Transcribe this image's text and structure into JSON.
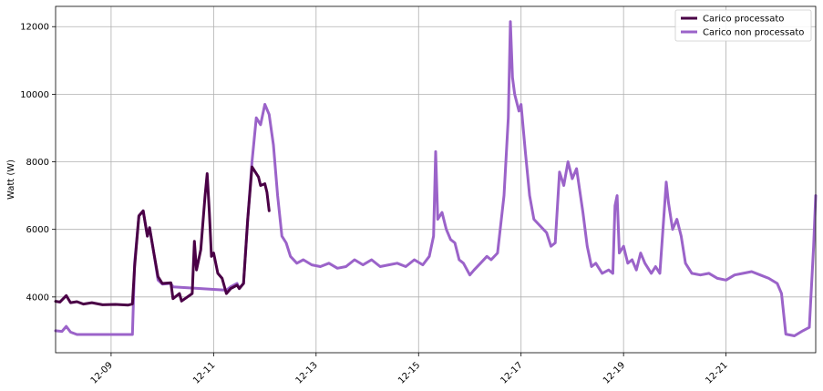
{
  "chart_data": {
    "type": "line",
    "title": "",
    "xlabel": "",
    "ylabel": "Watt (W)",
    "xlim": [
      "2021-12-07T22:00",
      "2021-12-22T18:00"
    ],
    "ylim": [
      2350,
      12600
    ],
    "x_ticks": [
      "12-09",
      "12-11",
      "12-13",
      "12-15",
      "12-17",
      "12-19",
      "12-21"
    ],
    "y_ticks": [
      "4000",
      "6000",
      "8000",
      "10000",
      "12000"
    ],
    "grid": true,
    "legend": "top-right",
    "colors": {
      "processed": "#4a0046",
      "unprocessed": "#9b63c9"
    },
    "series": [
      {
        "name": "Carico processato",
        "points": [
          [
            "2021-12-07T22:00",
            3870
          ],
          [
            "2021-12-08T00:00",
            3850
          ],
          [
            "2021-12-08T03:00",
            4040
          ],
          [
            "2021-12-08T05:00",
            3830
          ],
          [
            "2021-12-08T08:00",
            3860
          ],
          [
            "2021-12-08T11:00",
            3790
          ],
          [
            "2021-12-08T15:00",
            3830
          ],
          [
            "2021-12-08T20:00",
            3770
          ],
          [
            "2021-12-09T02:00",
            3780
          ],
          [
            "2021-12-09T08:00",
            3760
          ],
          [
            "2021-12-09T10:00",
            3790
          ],
          [
            "2021-12-09T11:00",
            4900
          ],
          [
            "2021-12-09T13:00",
            6400
          ],
          [
            "2021-12-09T15:00",
            6550
          ],
          [
            "2021-12-09T17:00",
            5800
          ],
          [
            "2021-12-09T18:00",
            6050
          ],
          [
            "2021-12-09T20:00",
            5300
          ],
          [
            "2021-12-09T22:00",
            4600
          ],
          [
            "2021-12-10T00:00",
            4400
          ],
          [
            "2021-12-10T04:00",
            4420
          ],
          [
            "2021-12-10T05:00",
            3950
          ],
          [
            "2021-12-10T08:00",
            4100
          ],
          [
            "2021-12-10T09:00",
            3880
          ],
          [
            "2021-12-10T14:00",
            4100
          ],
          [
            "2021-12-10T15:00",
            5650
          ],
          [
            "2021-12-10T16:00",
            4800
          ],
          [
            "2021-12-10T18:00",
            5400
          ],
          [
            "2021-12-10T20:00",
            7000
          ],
          [
            "2021-12-10T21:00",
            7650
          ],
          [
            "2021-12-10T22:00",
            6500
          ],
          [
            "2021-12-10T23:00",
            5200
          ],
          [
            "2021-12-11T00:00",
            5300
          ],
          [
            "2021-12-11T02:00",
            4700
          ],
          [
            "2021-12-11T04:00",
            4550
          ],
          [
            "2021-12-11T06:00",
            4100
          ],
          [
            "2021-12-11T08:00",
            4250
          ],
          [
            "2021-12-11T11:00",
            4350
          ],
          [
            "2021-12-11T12:00",
            4250
          ],
          [
            "2021-12-11T14:00",
            4400
          ],
          [
            "2021-12-11T16:00",
            6300
          ],
          [
            "2021-12-11T18:00",
            7850
          ],
          [
            "2021-12-11T21:00",
            7550
          ],
          [
            "2021-12-11T22:00",
            7300
          ],
          [
            "2021-12-12T00:00",
            7350
          ],
          [
            "2021-12-12T01:00",
            7100
          ],
          [
            "2021-12-12T02:00",
            6550
          ]
        ]
      },
      {
        "name": "Carico non processato",
        "points": [
          [
            "2021-12-07T22:00",
            3000
          ],
          [
            "2021-12-08T01:00",
            2980
          ],
          [
            "2021-12-08T03:00",
            3130
          ],
          [
            "2021-12-08T05:00",
            2960
          ],
          [
            "2021-12-08T08:00",
            2890
          ],
          [
            "2021-12-08T14:00",
            2890
          ],
          [
            "2021-12-09T00:00",
            2890
          ],
          [
            "2021-12-09T10:00",
            2890
          ],
          [
            "2021-12-09T11:00",
            5000
          ],
          [
            "2021-12-09T13:00",
            6400
          ],
          [
            "2021-12-09T15:00",
            6550
          ],
          [
            "2021-12-09T17:00",
            5800
          ],
          [
            "2021-12-09T18:00",
            6050
          ],
          [
            "2021-12-09T20:00",
            5300
          ],
          [
            "2021-12-09T22:00",
            4500
          ],
          [
            "2021-12-10T00:00",
            4380
          ],
          [
            "2021-12-10T04:00",
            4400
          ],
          [
            "2021-12-10T05:00",
            4300
          ],
          [
            "2021-12-11T06:00",
            4200
          ],
          [
            "2021-12-11T08:00",
            4300
          ],
          [
            "2021-12-11T11:00",
            4400
          ],
          [
            "2021-12-11T12:00",
            4250
          ],
          [
            "2021-12-11T14:00",
            4400
          ],
          [
            "2021-12-11T16:00",
            6300
          ],
          [
            "2021-12-11T18:00",
            8000
          ],
          [
            "2021-12-11T20:00",
            9300
          ],
          [
            "2021-12-11T22:00",
            9100
          ],
          [
            "2021-12-12T00:00",
            9700
          ],
          [
            "2021-12-12T02:00",
            9400
          ],
          [
            "2021-12-12T04:00",
            8500
          ],
          [
            "2021-12-12T06:00",
            7000
          ],
          [
            "2021-12-12T08:00",
            5800
          ],
          [
            "2021-12-12T10:00",
            5600
          ],
          [
            "2021-12-12T12:00",
            5200
          ],
          [
            "2021-12-12T15:00",
            5000
          ],
          [
            "2021-12-12T18:00",
            5100
          ],
          [
            "2021-12-12T22:00",
            4950
          ],
          [
            "2021-12-13T02:00",
            4900
          ],
          [
            "2021-12-13T06:00",
            5000
          ],
          [
            "2021-12-13T10:00",
            4850
          ],
          [
            "2021-12-13T14:00",
            4900
          ],
          [
            "2021-12-13T18:00",
            5100
          ],
          [
            "2021-12-13T22:00",
            4950
          ],
          [
            "2021-12-14T02:00",
            5100
          ],
          [
            "2021-12-14T06:00",
            4900
          ],
          [
            "2021-12-14T10:00",
            4950
          ],
          [
            "2021-12-14T14:00",
            5000
          ],
          [
            "2021-12-14T18:00",
            4900
          ],
          [
            "2021-12-14T22:00",
            5100
          ],
          [
            "2021-12-15T02:00",
            4950
          ],
          [
            "2021-12-15T05:00",
            5200
          ],
          [
            "2021-12-15T07:00",
            5800
          ],
          [
            "2021-12-15T08:00",
            8300
          ],
          [
            "2021-12-15T09:00",
            6300
          ],
          [
            "2021-12-15T11:00",
            6500
          ],
          [
            "2021-12-15T13:00",
            6000
          ],
          [
            "2021-12-15T15:00",
            5700
          ],
          [
            "2021-12-15T17:00",
            5600
          ],
          [
            "2021-12-15T19:00",
            5100
          ],
          [
            "2021-12-15T21:00",
            5000
          ],
          [
            "2021-12-16T00:00",
            4650
          ],
          [
            "2021-12-16T02:00",
            4800
          ],
          [
            "2021-12-16T05:00",
            5000
          ],
          [
            "2021-12-16T08:00",
            5200
          ],
          [
            "2021-12-16T10:00",
            5100
          ],
          [
            "2021-12-16T13:00",
            5300
          ],
          [
            "2021-12-16T16:00",
            7000
          ],
          [
            "2021-12-16T18:00",
            9300
          ],
          [
            "2021-12-16T19:00",
            12150
          ],
          [
            "2021-12-16T20:00",
            10500
          ],
          [
            "2021-12-16T21:00",
            10000
          ],
          [
            "2021-12-16T23:00",
            9500
          ],
          [
            "2021-12-17T00:00",
            9700
          ],
          [
            "2021-12-17T02:00",
            8300
          ],
          [
            "2021-12-17T04:00",
            7000
          ],
          [
            "2021-12-17T06:00",
            6300
          ],
          [
            "2021-12-17T09:00",
            6100
          ],
          [
            "2021-12-17T12:00",
            5900
          ],
          [
            "2021-12-17T14:00",
            5500
          ],
          [
            "2021-12-17T16:00",
            5600
          ],
          [
            "2021-12-17T18:00",
            7700
          ],
          [
            "2021-12-17T20:00",
            7300
          ],
          [
            "2021-12-17T22:00",
            8000
          ],
          [
            "2021-12-18T00:00",
            7500
          ],
          [
            "2021-12-18T02:00",
            7800
          ],
          [
            "2021-12-18T05:00",
            6500
          ],
          [
            "2021-12-18T07:00",
            5500
          ],
          [
            "2021-12-18T09:00",
            4900
          ],
          [
            "2021-12-18T11:00",
            5000
          ],
          [
            "2021-12-18T14:00",
            4700
          ],
          [
            "2021-12-18T17:00",
            4800
          ],
          [
            "2021-12-18T19:00",
            4700
          ],
          [
            "2021-12-18T20:00",
            6700
          ],
          [
            "2021-12-18T21:00",
            7000
          ],
          [
            "2021-12-18T22:00",
            5300
          ],
          [
            "2021-12-19T00:00",
            5500
          ],
          [
            "2021-12-19T02:00",
            5000
          ],
          [
            "2021-12-19T04:00",
            5100
          ],
          [
            "2021-12-19T06:00",
            4800
          ],
          [
            "2021-12-19T08:00",
            5300
          ],
          [
            "2021-12-19T10:00",
            5000
          ],
          [
            "2021-12-19T13:00",
            4700
          ],
          [
            "2021-12-19T15:00",
            4900
          ],
          [
            "2021-12-19T17:00",
            4700
          ],
          [
            "2021-12-19T19:00",
            6500
          ],
          [
            "2021-12-19T20:00",
            7400
          ],
          [
            "2021-12-19T21:00",
            6800
          ],
          [
            "2021-12-19T23:00",
            6000
          ],
          [
            "2021-12-20T01:00",
            6300
          ],
          [
            "2021-12-20T03:00",
            5800
          ],
          [
            "2021-12-20T05:00",
            5000
          ],
          [
            "2021-12-20T08:00",
            4700
          ],
          [
            "2021-12-20T12:00",
            4650
          ],
          [
            "2021-12-20T16:00",
            4700
          ],
          [
            "2021-12-20T20:00",
            4550
          ],
          [
            "2021-12-21T00:00",
            4500
          ],
          [
            "2021-12-21T04:00",
            4650
          ],
          [
            "2021-12-21T08:00",
            4700
          ],
          [
            "2021-12-21T12:00",
            4750
          ],
          [
            "2021-12-21T16:00",
            4650
          ],
          [
            "2021-12-21T20:00",
            4550
          ],
          [
            "2021-12-22T00:00",
            4400
          ],
          [
            "2021-12-22T02:00",
            4100
          ],
          [
            "2021-12-22T04:00",
            2900
          ],
          [
            "2021-12-22T08:00",
            2850
          ],
          [
            "2021-12-22T12:00",
            3000
          ],
          [
            "2021-12-22T15:00",
            3100
          ],
          [
            "2021-12-22T17:00",
            5500
          ],
          [
            "2021-12-22T18:00",
            7000
          ]
        ]
      }
    ]
  }
}
